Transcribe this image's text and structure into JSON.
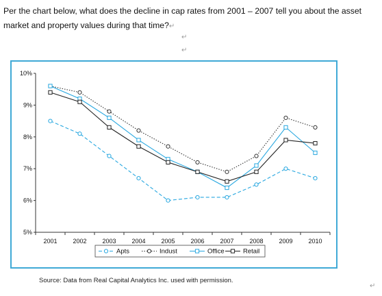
{
  "question": {
    "text": "Per the chart below, what does the decline in cap rates from 2001 – 2007 tell you about the asset market and property values during that time?",
    "paragraph_marks": [
      "↵",
      "↵",
      "↵",
      "↵",
      "↵"
    ]
  },
  "source": "Source: Data from Real Capital Analytics Inc. used with permission.",
  "colors": {
    "frame": "#3fa9d6",
    "apts": "#27a7e0",
    "indust": "#333333",
    "office": "#27a7e0",
    "retail": "#222222"
  },
  "chart_data": {
    "type": "line",
    "x": [
      "2001",
      "2002",
      "2003",
      "2004",
      "2005",
      "2006",
      "2007",
      "2008",
      "2009",
      "2010"
    ],
    "ylim": [
      5,
      10
    ],
    "yticks": [
      "5%",
      "6%",
      "7%",
      "8%",
      "9%",
      "10%"
    ],
    "grid": false,
    "legend": "bottom",
    "series": [
      {
        "name": "Apts",
        "style": "dashed",
        "marker": "open-circle",
        "values": [
          8.5,
          8.1,
          7.4,
          6.7,
          6.0,
          6.1,
          6.1,
          6.5,
          7.0,
          6.7
        ]
      },
      {
        "name": "Indust",
        "style": "dotted",
        "marker": "open-circle",
        "values": [
          9.6,
          9.4,
          8.8,
          8.2,
          7.7,
          7.2,
          6.9,
          7.4,
          8.6,
          8.3
        ]
      },
      {
        "name": "Office",
        "style": "solid",
        "marker": "open-square",
        "values": [
          9.6,
          9.2,
          8.6,
          7.9,
          7.3,
          6.9,
          6.4,
          7.1,
          8.3,
          7.5
        ]
      },
      {
        "name": "Retail",
        "style": "solid",
        "marker": "open-square",
        "values": [
          9.4,
          9.1,
          8.3,
          7.7,
          7.2,
          6.9,
          6.6,
          6.9,
          7.9,
          7.8
        ]
      }
    ]
  }
}
